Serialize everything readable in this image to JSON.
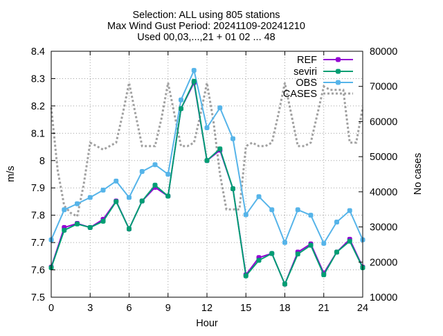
{
  "title_lines": [
    "Selection: ALL using   805 stations",
    "Max Wind Gust   Period: 20241109-20241210",
    "Used 00,03,...,21 + 01 02 ... 48"
  ],
  "colors": {
    "REF": "#9400d3",
    "seviri": "#009e73",
    "OBS": "#56b4e9",
    "CASES": "#a0a0a0",
    "grid": "#a0a0a0"
  },
  "chart_data": {
    "type": "line",
    "xlabel": "Hour",
    "ylabel": "m/s",
    "y2label": "No cases",
    "xlim": [
      0,
      24
    ],
    "ylim": [
      7.5,
      8.4
    ],
    "y2lim": [
      10000,
      80000
    ],
    "x_ticks": [
      0,
      3,
      6,
      9,
      12,
      15,
      18,
      21,
      24
    ],
    "x_tick_labels": [
      "0",
      "3",
      "6",
      "9",
      "12",
      "15",
      "18",
      "21",
      "24"
    ],
    "y_ticks": [
      7.5,
      7.6,
      7.7,
      7.8,
      7.9,
      8.0,
      8.1,
      8.2,
      8.3,
      8.4
    ],
    "y_tick_labels": [
      "7.5",
      "7.6",
      "7.7",
      "7.8",
      "7.9",
      "8",
      "8.1",
      "8.2",
      "8.3",
      "8.4"
    ],
    "y2_ticks": [
      10000,
      20000,
      30000,
      40000,
      50000,
      60000,
      70000,
      80000
    ],
    "y2_tick_labels": [
      "10000",
      "20000",
      "30000",
      "40000",
      "50000",
      "60000",
      "70000",
      "80000"
    ],
    "grid": true,
    "legend_position": "top-right",
    "x": [
      0,
      1,
      2,
      3,
      4,
      5,
      6,
      7,
      8,
      9,
      10,
      11,
      12,
      13,
      14,
      15,
      16,
      17,
      18,
      19,
      20,
      21,
      22,
      23,
      24
    ],
    "series": [
      {
        "name": "REF",
        "axis": "y",
        "values": [
          7.61,
          7.755,
          7.77,
          7.755,
          7.785,
          7.852,
          7.75,
          7.852,
          7.902,
          7.87,
          8.19,
          8.285,
          8.0,
          8.038,
          7.897,
          7.582,
          7.645,
          7.66,
          7.548,
          7.665,
          7.695,
          7.588,
          7.665,
          7.712,
          7.61
        ]
      },
      {
        "name": "seviri",
        "axis": "y",
        "values": [
          7.608,
          7.745,
          7.768,
          7.755,
          7.778,
          7.85,
          7.75,
          7.852,
          7.91,
          7.87,
          8.19,
          8.29,
          8.0,
          8.043,
          7.897,
          7.578,
          7.635,
          7.66,
          7.548,
          7.658,
          7.69,
          7.582,
          7.665,
          7.705,
          7.608
        ]
      },
      {
        "name": "OBS",
        "axis": "y",
        "values": [
          7.71,
          7.82,
          7.842,
          7.865,
          7.892,
          7.925,
          7.865,
          7.96,
          7.985,
          7.95,
          8.222,
          8.33,
          8.12,
          8.193,
          8.08,
          7.802,
          7.868,
          7.82,
          7.7,
          7.82,
          7.8,
          7.697,
          7.775,
          7.817,
          7.71
        ]
      },
      {
        "name": "CASES",
        "axis": "y2",
        "style": "dotted",
        "x": [
          0,
          0.5,
          1,
          1.5,
          2,
          2.5,
          3,
          3.5,
          4,
          4.5,
          5,
          5.5,
          6,
          6.5,
          7,
          7.5,
          8,
          8.5,
          9,
          9.5,
          10,
          10.5,
          11,
          11.5,
          12,
          12.5,
          13,
          13.5,
          14,
          14.5,
          15,
          15.5,
          16,
          16.5,
          17,
          17.5,
          18,
          18.5,
          19,
          19.5,
          20,
          20.5,
          21,
          21.5,
          22,
          22.5,
          23,
          23.5,
          24
        ],
        "values": [
          64000,
          46000,
          36000,
          34000,
          33000,
          42000,
          54000,
          53000,
          52000,
          53000,
          54000,
          62000,
          71000,
          62000,
          53000,
          53000,
          53000,
          61000,
          71000,
          62000,
          53000,
          53000,
          54000,
          62000,
          71000,
          60000,
          45000,
          35000,
          35000,
          35000,
          53000,
          54000,
          53000,
          53000,
          54000,
          62000,
          71000,
          62000,
          53000,
          53000,
          54000,
          62000,
          70000,
          69000,
          69000,
          69000,
          54000,
          54000,
          64000
        ]
      }
    ]
  }
}
